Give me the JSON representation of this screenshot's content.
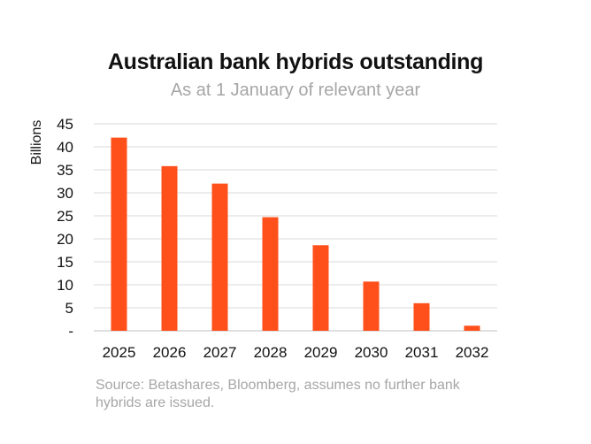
{
  "chart_data": {
    "type": "bar",
    "title": "Australian bank hybrids outstanding",
    "subtitle": "As at 1 January of relevant year",
    "ylabel": "Billions",
    "xlabel": "",
    "categories": [
      "2025",
      "2026",
      "2027",
      "2028",
      "2029",
      "2030",
      "2031",
      "2032"
    ],
    "values": [
      42.0,
      35.8,
      32.0,
      24.7,
      18.6,
      10.7,
      6.0,
      1.1
    ],
    "ylim": [
      0,
      45
    ],
    "yticks": [
      {
        "value": 0,
        "label": "-"
      },
      {
        "value": 5,
        "label": "5"
      },
      {
        "value": 10,
        "label": "10"
      },
      {
        "value": 15,
        "label": "15"
      },
      {
        "value": 20,
        "label": "20"
      },
      {
        "value": 25,
        "label": "25"
      },
      {
        "value": 30,
        "label": "30"
      },
      {
        "value": 35,
        "label": "35"
      },
      {
        "value": 40,
        "label": "40"
      },
      {
        "value": 45,
        "label": "45"
      }
    ],
    "grid": true,
    "legend": "none",
    "bar_color": "#ff4f1a",
    "gridline_color": "#d9d9d9",
    "source": "Source: Betashares, Bloomberg, assumes no further bank hybrids are issued."
  }
}
